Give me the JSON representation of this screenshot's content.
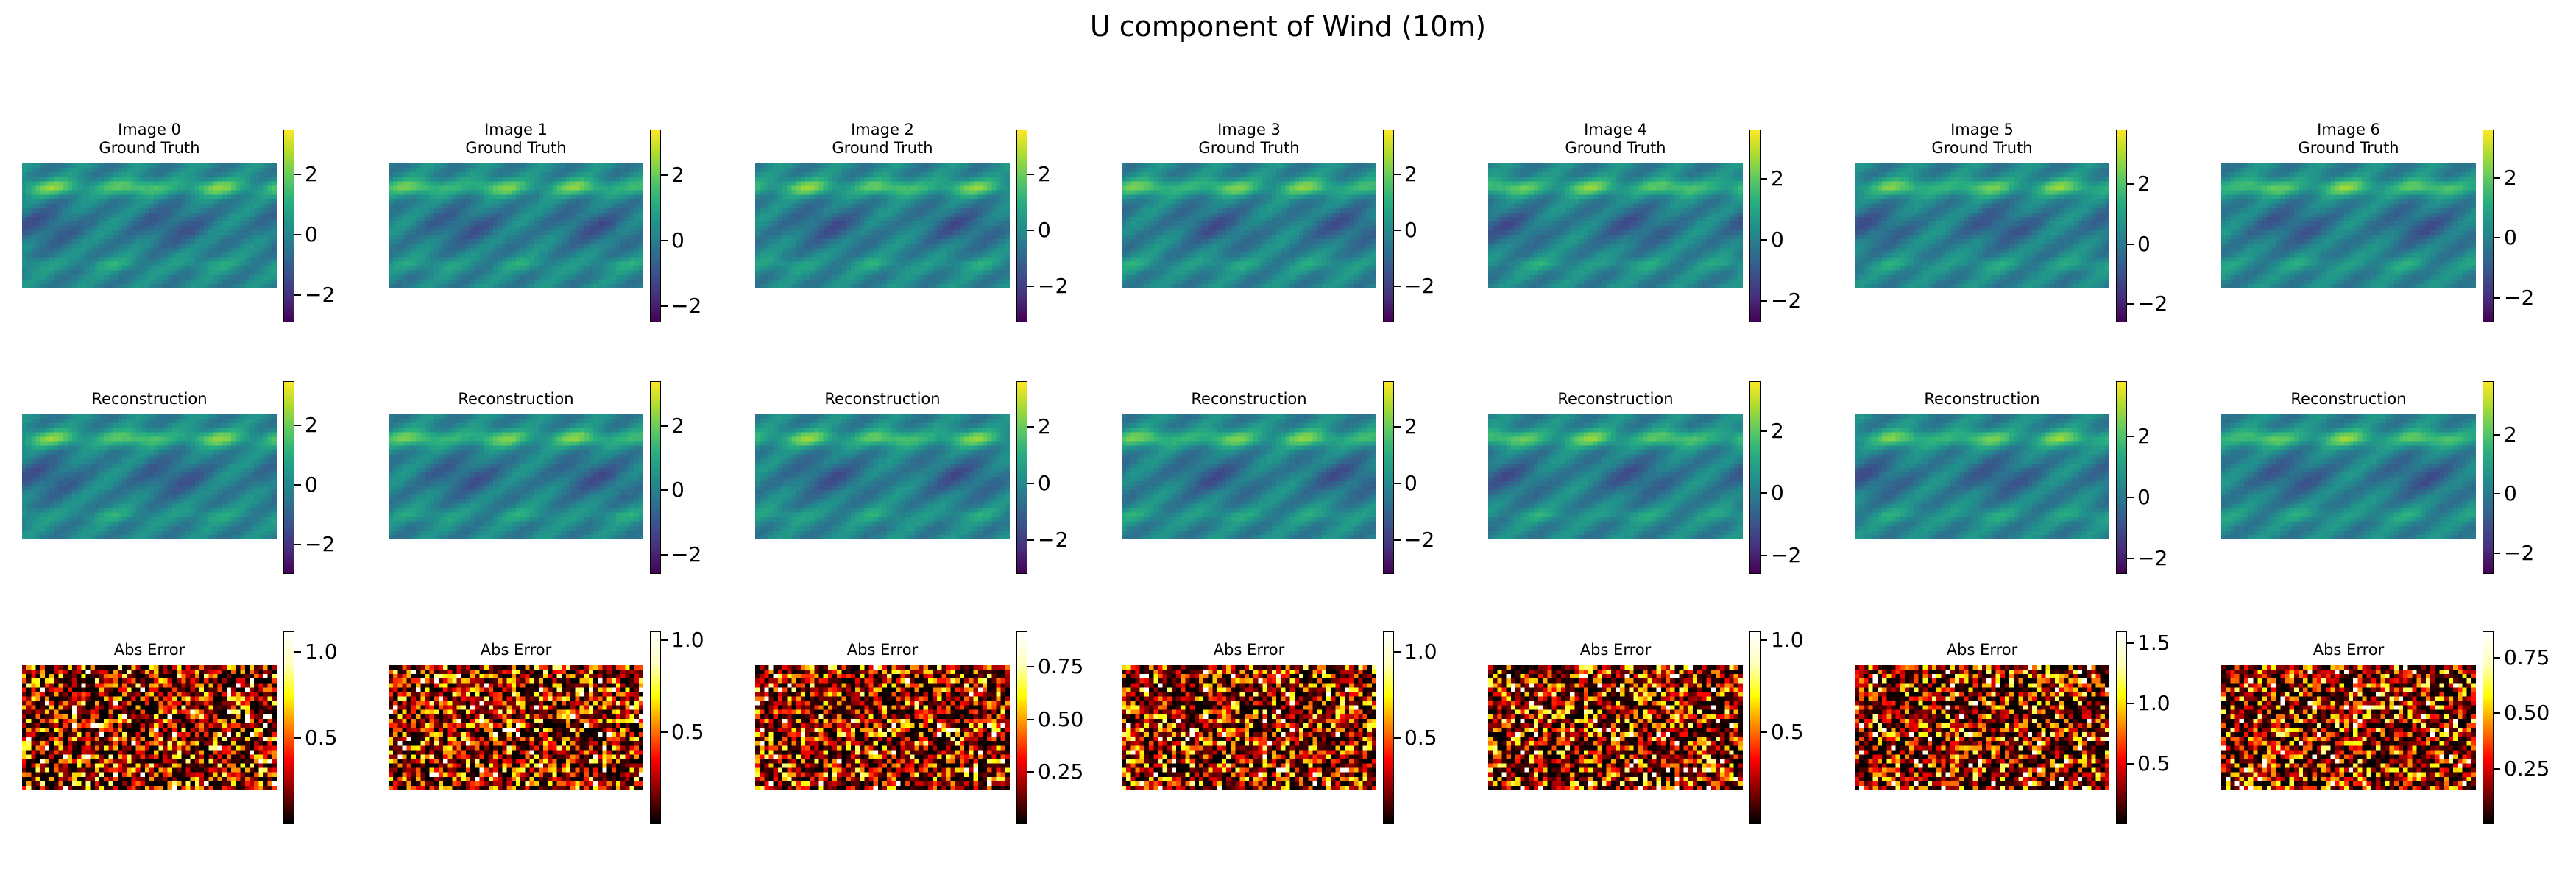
{
  "figure": {
    "suptitle": "U component of Wind (10m)",
    "colors": {
      "viridis": [
        "#440154",
        "#472d7b",
        "#3b528b",
        "#2c728e",
        "#21918c",
        "#28ae80",
        "#5ec962",
        "#addc30",
        "#fde725"
      ],
      "hot": [
        "#000000",
        "#800000",
        "#ff0000",
        "#ff8000",
        "#ffff00",
        "#ffffc0",
        "#ffffff"
      ]
    }
  },
  "chart_data": [
    {
      "type": "heatmap",
      "row": "ground_truth",
      "title_lines": [
        "Image 0",
        "Ground Truth"
      ],
      "colormap": "viridis",
      "vmin": -2.9,
      "vmax": 3.5,
      "ticks": [
        -2,
        0,
        2
      ],
      "tick_labels": [
        "−2",
        "0",
        "2"
      ],
      "seed": 11
    },
    {
      "type": "heatmap",
      "row": "ground_truth",
      "title_lines": [
        "Image 1",
        "Ground Truth"
      ],
      "colormap": "viridis",
      "vmin": -2.5,
      "vmax": 3.4,
      "ticks": [
        -2,
        0,
        2
      ],
      "tick_labels": [
        "−2",
        "0",
        "2"
      ],
      "seed": 23
    },
    {
      "type": "heatmap",
      "row": "ground_truth",
      "title_lines": [
        "Image 2",
        "Ground Truth"
      ],
      "colormap": "viridis",
      "vmin": -3.3,
      "vmax": 3.6,
      "ticks": [
        -2,
        0,
        2
      ],
      "tick_labels": [
        "−2",
        "0",
        "2"
      ],
      "seed": 37
    },
    {
      "type": "heatmap",
      "row": "ground_truth",
      "title_lines": [
        "Image 3",
        "Ground Truth"
      ],
      "colormap": "viridis",
      "vmin": -3.3,
      "vmax": 3.6,
      "ticks": [
        -2,
        0,
        2
      ],
      "tick_labels": [
        "−2",
        "0",
        "2"
      ],
      "seed": 41
    },
    {
      "type": "heatmap",
      "row": "ground_truth",
      "title_lines": [
        "Image 4",
        "Ground Truth"
      ],
      "colormap": "viridis",
      "vmin": -2.7,
      "vmax": 3.6,
      "ticks": [
        -2,
        0,
        2
      ],
      "tick_labels": [
        "−2",
        "0",
        "2"
      ],
      "seed": 53
    },
    {
      "type": "heatmap",
      "row": "ground_truth",
      "title_lines": [
        "Image 5",
        "Ground Truth"
      ],
      "colormap": "viridis",
      "vmin": -2.6,
      "vmax": 3.8,
      "ticks": [
        -2,
        0,
        2
      ],
      "tick_labels": [
        "−2",
        "0",
        "2"
      ],
      "seed": 67
    },
    {
      "type": "heatmap",
      "row": "ground_truth",
      "title_lines": [
        "Image 6",
        "Ground Truth"
      ],
      "colormap": "viridis",
      "vmin": -2.8,
      "vmax": 3.6,
      "ticks": [
        -2,
        0,
        2
      ],
      "tick_labels": [
        "−2",
        "0",
        "2"
      ],
      "seed": 79
    },
    {
      "type": "heatmap",
      "row": "reconstruction",
      "title_lines": [
        "Reconstruction"
      ],
      "colormap": "viridis",
      "vmin": -3.0,
      "vmax": 3.5,
      "ticks": [
        -2,
        0,
        2
      ],
      "tick_labels": [
        "−2",
        "0",
        "2"
      ],
      "seed": 11
    },
    {
      "type": "heatmap",
      "row": "reconstruction",
      "title_lines": [
        "Reconstruction"
      ],
      "colormap": "viridis",
      "vmin": -2.6,
      "vmax": 3.4,
      "ticks": [
        -2,
        0,
        2
      ],
      "tick_labels": [
        "−2",
        "0",
        "2"
      ],
      "seed": 23
    },
    {
      "type": "heatmap",
      "row": "reconstruction",
      "title_lines": [
        "Reconstruction"
      ],
      "colormap": "viridis",
      "vmin": -3.2,
      "vmax": 3.6,
      "ticks": [
        -2,
        0,
        2
      ],
      "tick_labels": [
        "−2",
        "0",
        "2"
      ],
      "seed": 37
    },
    {
      "type": "heatmap",
      "row": "reconstruction",
      "title_lines": [
        "Reconstruction"
      ],
      "colormap": "viridis",
      "vmin": -3.2,
      "vmax": 3.6,
      "ticks": [
        -2,
        0,
        2
      ],
      "tick_labels": [
        "−2",
        "0",
        "2"
      ],
      "seed": 41
    },
    {
      "type": "heatmap",
      "row": "reconstruction",
      "title_lines": [
        "Reconstruction"
      ],
      "colormap": "viridis",
      "vmin": -2.6,
      "vmax": 3.6,
      "ticks": [
        -2,
        0,
        2
      ],
      "tick_labels": [
        "−2",
        "0",
        "2"
      ],
      "seed": 53
    },
    {
      "type": "heatmap",
      "row": "reconstruction",
      "title_lines": [
        "Reconstruction"
      ],
      "colormap": "viridis",
      "vmin": -2.5,
      "vmax": 3.8,
      "ticks": [
        -2,
        0,
        2
      ],
      "tick_labels": [
        "−2",
        "0",
        "2"
      ],
      "seed": 67
    },
    {
      "type": "heatmap",
      "row": "reconstruction",
      "title_lines": [
        "Reconstruction"
      ],
      "colormap": "viridis",
      "vmin": -2.7,
      "vmax": 3.8,
      "ticks": [
        -2,
        0,
        2
      ],
      "tick_labels": [
        "−2",
        "0",
        "2"
      ],
      "seed": 79
    },
    {
      "type": "heatmap",
      "row": "abs_error",
      "title_lines": [
        "Abs Error"
      ],
      "colormap": "hot",
      "vmin": 0.0,
      "vmax": 1.12,
      "ticks": [
        0.5,
        1.0
      ],
      "tick_labels": [
        "0.5",
        "1.0"
      ],
      "seed": 101
    },
    {
      "type": "heatmap",
      "row": "abs_error",
      "title_lines": [
        "Abs Error"
      ],
      "colormap": "hot",
      "vmin": 0.0,
      "vmax": 1.05,
      "ticks": [
        0.5,
        1.0
      ],
      "tick_labels": [
        "0.5",
        "1.0"
      ],
      "seed": 113
    },
    {
      "type": "heatmap",
      "row": "abs_error",
      "title_lines": [
        "Abs Error"
      ],
      "colormap": "hot",
      "vmin": 0.0,
      "vmax": 0.92,
      "ticks": [
        0.25,
        0.5,
        0.75
      ],
      "tick_labels": [
        "0.25",
        "0.50",
        "0.75"
      ],
      "seed": 127
    },
    {
      "type": "heatmap",
      "row": "abs_error",
      "title_lines": [
        "Abs Error"
      ],
      "colormap": "hot",
      "vmin": 0.0,
      "vmax": 1.12,
      "ticks": [
        0.5,
        1.0
      ],
      "tick_labels": [
        "0.5",
        "1.0"
      ],
      "seed": 139
    },
    {
      "type": "heatmap",
      "row": "abs_error",
      "title_lines": [
        "Abs Error"
      ],
      "colormap": "hot",
      "vmin": 0.0,
      "vmax": 1.05,
      "ticks": [
        0.5,
        1.0
      ],
      "tick_labels": [
        "0.5",
        "1.0"
      ],
      "seed": 151
    },
    {
      "type": "heatmap",
      "row": "abs_error",
      "title_lines": [
        "Abs Error"
      ],
      "colormap": "hot",
      "vmin": 0.0,
      "vmax": 1.6,
      "ticks": [
        0.5,
        1.0,
        1.5
      ],
      "tick_labels": [
        "0.5",
        "1.0",
        "1.5"
      ],
      "seed": 163
    },
    {
      "type": "heatmap",
      "row": "abs_error",
      "title_lines": [
        "Abs Error"
      ],
      "colormap": "hot",
      "vmin": 0.0,
      "vmax": 0.87,
      "ticks": [
        0.25,
        0.5,
        0.75
      ],
      "tick_labels": [
        "0.25",
        "0.50",
        "0.75"
      ],
      "seed": 179
    }
  ]
}
